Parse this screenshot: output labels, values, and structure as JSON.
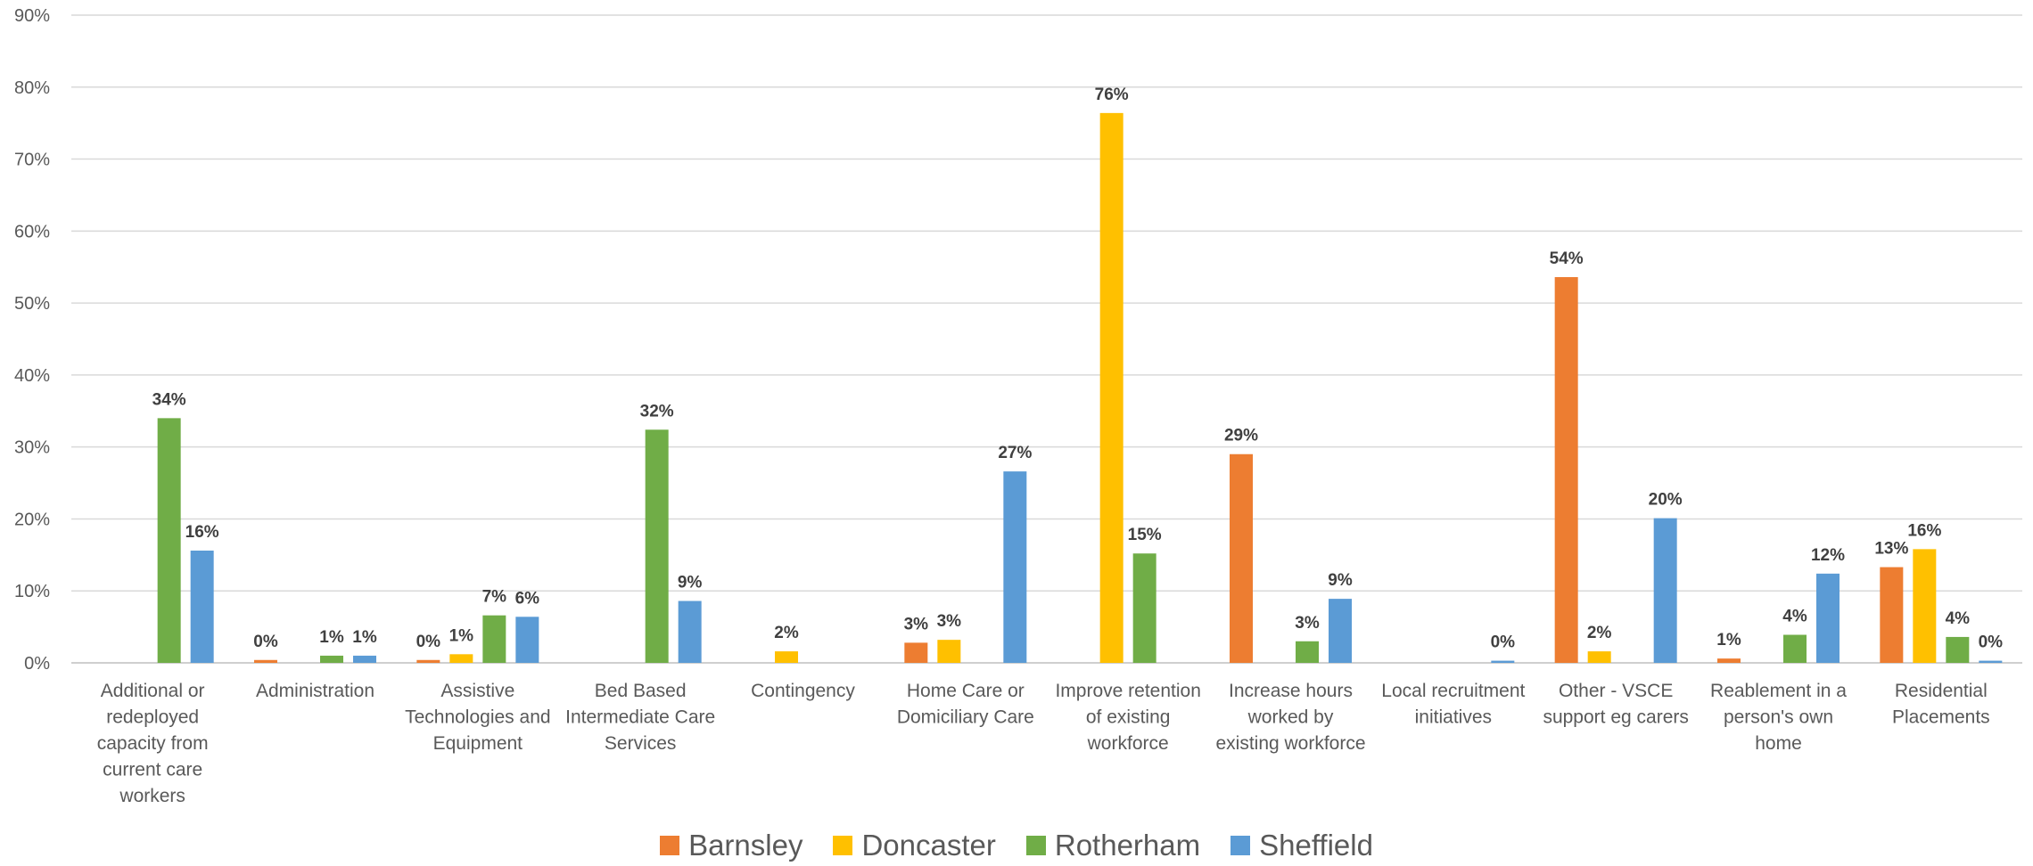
{
  "chart_data": {
    "type": "bar",
    "ylim": [
      0,
      90
    ],
    "yticks": [
      "0%",
      "10%",
      "20%",
      "30%",
      "40%",
      "50%",
      "60%",
      "70%",
      "80%",
      "90%"
    ],
    "grid": true,
    "legend_position": "bottom",
    "categories": [
      [
        "Additional or",
        "redeployed",
        "capacity from",
        "current care",
        "workers"
      ],
      [
        "Administration"
      ],
      [
        "Assistive",
        "Technologies and",
        "Equipment"
      ],
      [
        "Bed Based",
        "Intermediate Care",
        "Services"
      ],
      [
        "Contingency"
      ],
      [
        "Home Care or",
        "Domiciliary Care"
      ],
      [
        "Improve retention",
        "of existing",
        "workforce"
      ],
      [
        "Increase hours",
        "worked by",
        "existing workforce"
      ],
      [
        "Local recruitment",
        "initiatives"
      ],
      [
        "Other - VSCE",
        "support eg carers"
      ],
      [
        "Reablement in a",
        "person's own",
        "home"
      ],
      [
        "Residential",
        "Placements"
      ]
    ],
    "series": [
      {
        "name": "Barnsley",
        "color": "#ED7D31",
        "values": [
          null,
          0.4,
          0.4,
          null,
          null,
          2.8,
          null,
          29.0,
          null,
          53.6,
          0.6,
          13.3
        ],
        "labels": [
          null,
          "0%",
          "0%",
          null,
          null,
          "3%",
          null,
          "29%",
          null,
          "54%",
          "1%",
          "13%"
        ]
      },
      {
        "name": "Doncaster",
        "color": "#FFC000",
        "values": [
          null,
          null,
          1.2,
          null,
          1.6,
          3.2,
          76.4,
          null,
          null,
          1.6,
          null,
          15.8
        ],
        "labels": [
          null,
          null,
          "1%",
          null,
          "2%",
          "3%",
          "76%",
          null,
          null,
          "2%",
          null,
          "16%"
        ]
      },
      {
        "name": "Rotherham",
        "color": "#70AD47",
        "values": [
          34.0,
          1.0,
          6.6,
          32.4,
          null,
          null,
          15.2,
          3.0,
          null,
          null,
          3.9,
          3.6
        ],
        "labels": [
          "34%",
          "1%",
          "7%",
          "32%",
          null,
          null,
          "15%",
          "3%",
          null,
          null,
          "4%",
          "4%"
        ]
      },
      {
        "name": "Sheffield",
        "color": "#5B9BD5",
        "values": [
          15.6,
          1.0,
          6.4,
          8.6,
          null,
          26.6,
          null,
          8.9,
          0.3,
          20.1,
          12.4,
          0.3
        ],
        "labels": [
          "16%",
          "1%",
          "6%",
          "9%",
          null,
          "27%",
          null,
          "9%",
          "0%",
          "20%",
          "12%",
          "0%"
        ]
      }
    ]
  },
  "legend": {
    "items": [
      "Barnsley",
      "Doncaster",
      "Rotherham",
      "Sheffield"
    ],
    "colors": [
      "#ED7D31",
      "#FFC000",
      "#70AD47",
      "#5B9BD5"
    ]
  }
}
